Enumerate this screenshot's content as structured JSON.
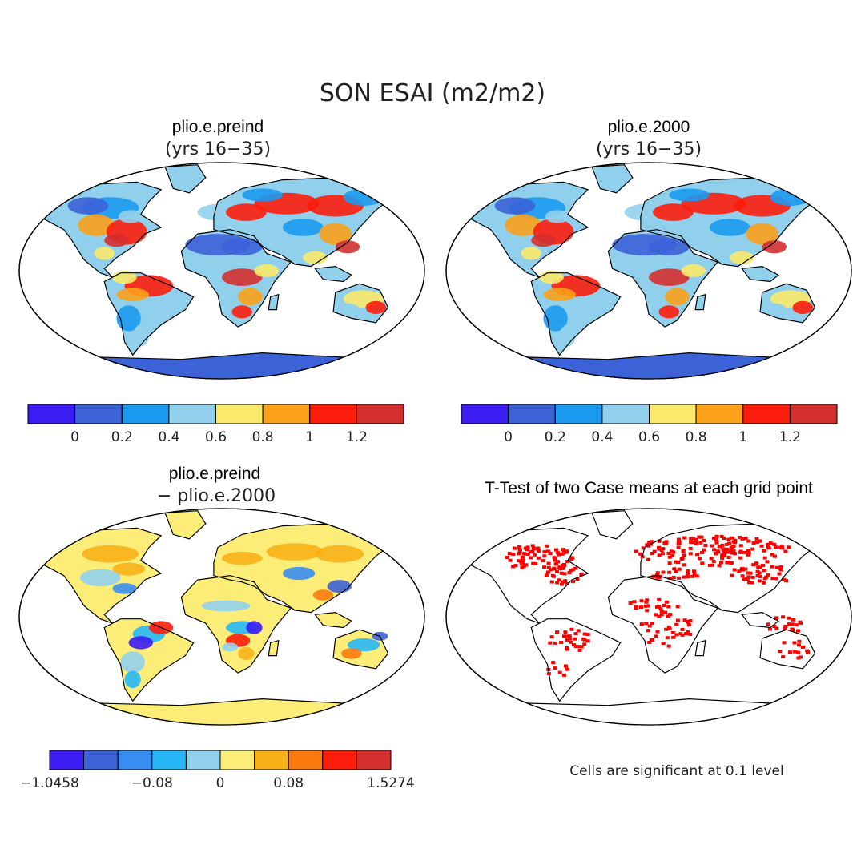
{
  "figure": {
    "title": "SON ESAI (m2/m2)",
    "note": "Cells are significant at 0.1 level"
  },
  "palettes": {
    "abs": [
      "#3b1cf2",
      "#3c62d8",
      "#1c9af0",
      "#91d0ec",
      "#fbe96b",
      "#fba11a",
      "#fc1d0c",
      "#d42f2f"
    ],
    "diff": [
      "#3b1cf2",
      "#3c62d8",
      "#3a8df0",
      "#27b6f5",
      "#91d0ec",
      "#fbed78",
      "#f8b018",
      "#fb7a10",
      "#fc1d0c",
      "#d42f2f"
    ],
    "signif": "#ff0000"
  },
  "panels": [
    {
      "id": "preind",
      "title": "plio.e.preind",
      "subtitle": "(yrs 16−35)",
      "colorbar_ticks": [
        "0",
        "0.2",
        "0.4",
        "0.6",
        "0.8",
        "1",
        "1.2"
      ]
    },
    {
      "id": "2000",
      "title": "plio.e.2000",
      "subtitle": "(yrs 16−35)",
      "colorbar_ticks": [
        "0",
        "0.2",
        "0.4",
        "0.6",
        "0.8",
        "1",
        "1.2"
      ]
    },
    {
      "id": "diff",
      "title": "plio.e.preind",
      "subtitle": "− plio.e.2000",
      "colorbar_ticks": [
        "−1.0458",
        "−0.08",
        "0",
        "0.08",
        "1.5274"
      ]
    },
    {
      "id": "ttest",
      "title": "T-Test of two Case means at each grid point",
      "subtitle": ""
    }
  ]
}
